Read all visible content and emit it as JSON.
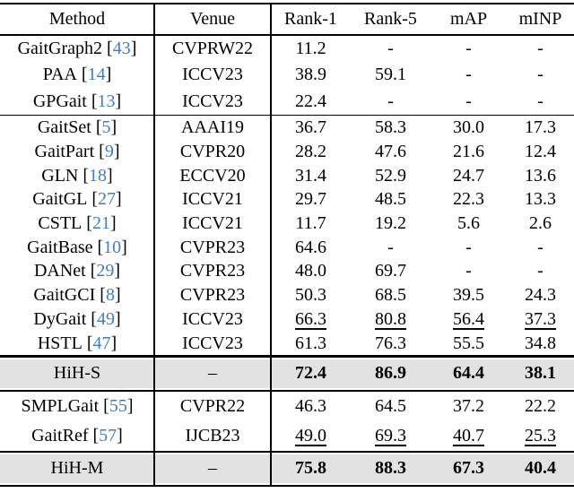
{
  "colors": {
    "highlight_bg": "#e2e2e2",
    "citation_blue": "#3e7ec2",
    "rule": "#000000"
  },
  "table": {
    "bracket_open": "[",
    "bracket_close": "]",
    "header": {
      "method": "Method",
      "venue": "Venue",
      "rank1": "Rank-1",
      "rank5": "Rank-5",
      "map": "mAP",
      "minp": "mINP"
    },
    "group1": [
      {
        "name": "GaitGraph2",
        "cite": "43",
        "venue": "CVPRW22",
        "rank1": "11.2",
        "rank5": "-",
        "map": "-",
        "minp": "-"
      },
      {
        "name": "PAA",
        "cite": "14",
        "venue": "ICCV23",
        "rank1": "38.9",
        "rank5": "59.1",
        "map": "-",
        "minp": "-"
      },
      {
        "name": "GPGait",
        "cite": "13",
        "venue": "ICCV23",
        "rank1": "22.4",
        "rank5": "-",
        "map": "-",
        "minp": "-"
      }
    ],
    "group2": [
      {
        "name": "GaitSet",
        "cite": "5",
        "venue": "AAAI19",
        "rank1": "36.7",
        "rank5": "58.3",
        "map": "30.0",
        "minp": "17.3"
      },
      {
        "name": "GaitPart",
        "cite": "9",
        "venue": "CVPR20",
        "rank1": "28.2",
        "rank5": "47.6",
        "map": "21.6",
        "minp": "12.4"
      },
      {
        "name": "GLN",
        "cite": "18",
        "venue": "ECCV20",
        "rank1": "31.4",
        "rank5": "52.9",
        "map": "24.7",
        "minp": "13.6"
      },
      {
        "name": "GaitGL",
        "cite": "27",
        "venue": "ICCV21",
        "rank1": "29.7",
        "rank5": "48.5",
        "map": "22.3",
        "minp": "13.3"
      },
      {
        "name": "CSTL",
        "cite": "21",
        "venue": "ICCV21",
        "rank1": "11.7",
        "rank5": "19.2",
        "map": "5.6",
        "minp": "2.6"
      },
      {
        "name": "GaitBase",
        "cite": "10",
        "venue": "CVPR23",
        "rank1": "64.6",
        "rank5": "-",
        "map": "-",
        "minp": "-"
      },
      {
        "name": "DANet",
        "cite": "29",
        "venue": "CVPR23",
        "rank1": "48.0",
        "rank5": "69.7",
        "map": "-",
        "minp": "-"
      },
      {
        "name": "GaitGCI",
        "cite": "8",
        "venue": "CVPR23",
        "rank1": "50.3",
        "rank5": "68.5",
        "map": "39.5",
        "minp": "24.3"
      },
      {
        "name": "DyGait",
        "cite": "49",
        "venue": "ICCV23",
        "rank1": "66.3",
        "rank5": "80.8",
        "map": "56.4",
        "minp": "37.3",
        "underline": true
      },
      {
        "name": "HSTL",
        "cite": "47",
        "venue": "ICCV23",
        "rank1": "61.3",
        "rank5": "76.3",
        "map": "55.5",
        "minp": "34.8"
      }
    ],
    "hih_s": {
      "name": "HiH-S",
      "venue": "–",
      "rank1": "72.4",
      "rank5": "86.9",
      "map": "64.4",
      "minp": "38.1",
      "bold": true
    },
    "group3": [
      {
        "name": "SMPLGait",
        "cite": "55",
        "venue": "CVPR22",
        "rank1": "46.3",
        "rank5": "64.5",
        "map": "37.2",
        "minp": "22.2"
      },
      {
        "name": "GaitRef",
        "cite": "57",
        "venue": "IJCB23",
        "rank1": "49.0",
        "rank5": "69.3",
        "map": "40.7",
        "minp": "25.3",
        "underline": true
      }
    ],
    "hih_m": {
      "name": "HiH-M",
      "venue": "–",
      "rank1": "75.8",
      "rank5": "88.3",
      "map": "67.3",
      "minp": "40.4",
      "bold": true
    }
  }
}
